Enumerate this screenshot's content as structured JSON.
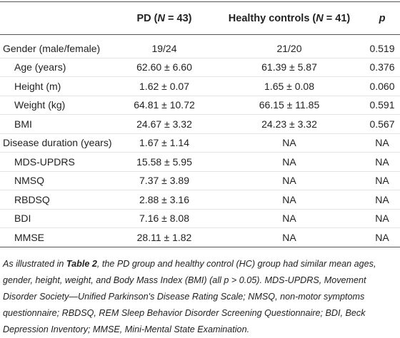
{
  "table": {
    "header": [
      {
        "parts": [
          {
            "text": "PD ("
          },
          {
            "text": "N",
            "italic": true
          },
          {
            "text": " = 43)"
          }
        ]
      },
      {
        "parts": [
          {
            "text": "Healthy controls ("
          },
          {
            "text": "N",
            "italic": true
          },
          {
            "text": " = 41)"
          }
        ]
      },
      {
        "parts": [
          {
            "text": "p",
            "italic": true
          }
        ]
      }
    ],
    "rows": [
      {
        "label": "Gender (male/female)",
        "indent": false,
        "cells": [
          "19/24",
          "21/20",
          "0.519"
        ]
      },
      {
        "label": "Age (years)",
        "indent": true,
        "cells": [
          "62.60 ± 6.60",
          "61.39 ± 5.87",
          "0.376"
        ]
      },
      {
        "label": "Height (m)",
        "indent": true,
        "cells": [
          "1.62 ± 0.07",
          "1.65 ± 0.08",
          "0.060"
        ]
      },
      {
        "label": "Weight (kg)",
        "indent": true,
        "cells": [
          "64.81 ± 10.72",
          "66.15 ± 11.85",
          "0.591"
        ]
      },
      {
        "label": "BMI",
        "indent": true,
        "cells": [
          "24.67 ± 3.32",
          "24.23 ± 3.32",
          "0.567"
        ]
      },
      {
        "label": "Disease duration (years)",
        "indent": false,
        "cells": [
          "1.67 ± 1.14",
          "NA",
          "NA"
        ]
      },
      {
        "label": "MDS-UPDRS",
        "indent": true,
        "cells": [
          "15.58 ± 5.95",
          "NA",
          "NA"
        ]
      },
      {
        "label": "NMSQ",
        "indent": true,
        "cells": [
          "7.37 ± 3.89",
          "NA",
          "NA"
        ]
      },
      {
        "label": "RBDSQ",
        "indent": true,
        "cells": [
          "2.88 ± 3.16",
          "NA",
          "NA"
        ]
      },
      {
        "label": "BDI",
        "indent": true,
        "cells": [
          "7.16 ± 8.08",
          "NA",
          "NA"
        ]
      },
      {
        "label": "MMSE",
        "indent": true,
        "cells": [
          "28.11 ± 1.82",
          "NA",
          "NA"
        ]
      }
    ]
  },
  "caption": {
    "parts": [
      {
        "text": "As illustrated in "
      },
      {
        "text": "Table 2",
        "bold": true
      },
      {
        "text": ", the PD group and healthy control (HC) group had similar mean ages, gender, height, weight, and Body Mass Index (BMI) (all p > 0.05). MDS-UPDRS, Movement Disorder Society—Unified Parkinson's Disease Rating Scale; NMSQ, non-motor symptoms questionnaire; RBDSQ, REM Sleep Behavior Disorder Screening Questionnaire; BDI, Beck Depression Inventory; MMSE, Mini-Mental State Examination."
      }
    ]
  }
}
